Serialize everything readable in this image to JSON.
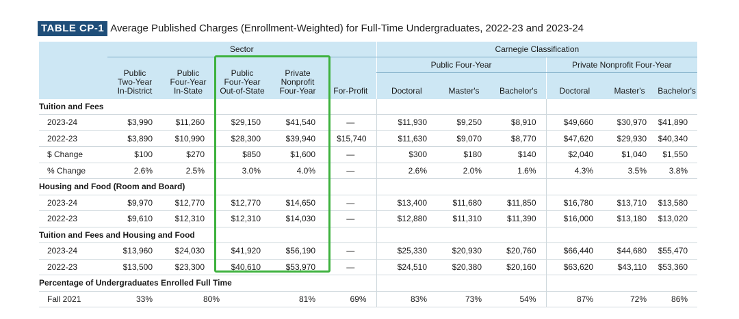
{
  "title": {
    "badge": "TABLE CP-1",
    "text": "Average Published Charges (Enrollment-Weighted) for Full-Time Undergraduates, 2022-23 and 2023-24"
  },
  "headers": {
    "sector": "Sector",
    "carnegie": "Carnegie Classification",
    "public_four_year": "Public Four-Year",
    "private_nonprofit_four_year": "Private Nonprofit Four-Year",
    "columns": [
      [
        "Public",
        "Two-Year",
        "In-District"
      ],
      [
        "Public",
        "Four-Year",
        "In-State"
      ],
      [
        "Public",
        "Four-Year",
        "Out-of-State"
      ],
      [
        "Private",
        "Nonprofit",
        "Four-Year"
      ],
      [
        "For-Profit"
      ],
      [
        "Doctoral"
      ],
      [
        "Master's"
      ],
      [
        "Bachelor's"
      ],
      [
        "Doctoral"
      ],
      [
        "Master's"
      ],
      [
        "Bachelor's"
      ]
    ]
  },
  "sections": [
    {
      "title": "Tuition and Fees",
      "rows": [
        {
          "label": "2023-24",
          "values": [
            "$3,990",
            "$11,260",
            "$29,150",
            "$41,540",
            "—",
            "$11,930",
            "$9,250",
            "$8,910",
            "$49,660",
            "$30,970",
            "$41,890"
          ]
        },
        {
          "label": "2022-23",
          "values": [
            "$3,890",
            "$10,990",
            "$28,300",
            "$39,940",
            "$15,740",
            "$11,630",
            "$9,070",
            "$8,770",
            "$47,620",
            "$29,930",
            "$40,340"
          ]
        },
        {
          "label": "$ Change",
          "values": [
            "$100",
            "$270",
            "$850",
            "$1,600",
            "—",
            "$300",
            "$180",
            "$140",
            "$2,040",
            "$1,040",
            "$1,550"
          ]
        },
        {
          "label": "% Change",
          "values": [
            "2.6%",
            "2.5%",
            "3.0%",
            "4.0%",
            "—",
            "2.6%",
            "2.0%",
            "1.6%",
            "4.3%",
            "3.5%",
            "3.8%"
          ]
        }
      ]
    },
    {
      "title": "Housing and Food (Room and Board)",
      "rows": [
        {
          "label": "2023-24",
          "values": [
            "$9,970",
            "$12,770",
            "$12,770",
            "$14,650",
            "—",
            "$13,400",
            "$11,680",
            "$11,850",
            "$16,780",
            "$13,710",
            "$13,580"
          ]
        },
        {
          "label": "2022-23",
          "values": [
            "$9,610",
            "$12,310",
            "$12,310",
            "$14,030",
            "—",
            "$12,880",
            "$11,310",
            "$11,390",
            "$16,000",
            "$13,180",
            "$13,020"
          ]
        }
      ]
    },
    {
      "title": "Tuition and Fees and Housing and Food",
      "rows": [
        {
          "label": "2023-24",
          "values": [
            "$13,960",
            "$24,030",
            "$41,920",
            "$56,190",
            "—",
            "$25,330",
            "$20,930",
            "$20,760",
            "$66,440",
            "$44,680",
            "$55,470"
          ]
        },
        {
          "label": "2022-23",
          "values": [
            "$13,500",
            "$23,300",
            "$40,610",
            "$53,970",
            "—",
            "$24,510",
            "$20,380",
            "$20,160",
            "$63,620",
            "$43,110",
            "$53,360"
          ]
        }
      ]
    }
  ],
  "enrollment": {
    "title": "Percentage of Undergraduates Enrolled Full Time",
    "label": "Fall 2021",
    "values": [
      "33%",
      "80%",
      "81%",
      "69%",
      "83%",
      "73%",
      "54%",
      "87%",
      "72%",
      "86%"
    ]
  },
  "colors": {
    "badge_bg": "#1f4e79",
    "header_bg": "#cde7f4",
    "highlight": "#3db13d"
  }
}
